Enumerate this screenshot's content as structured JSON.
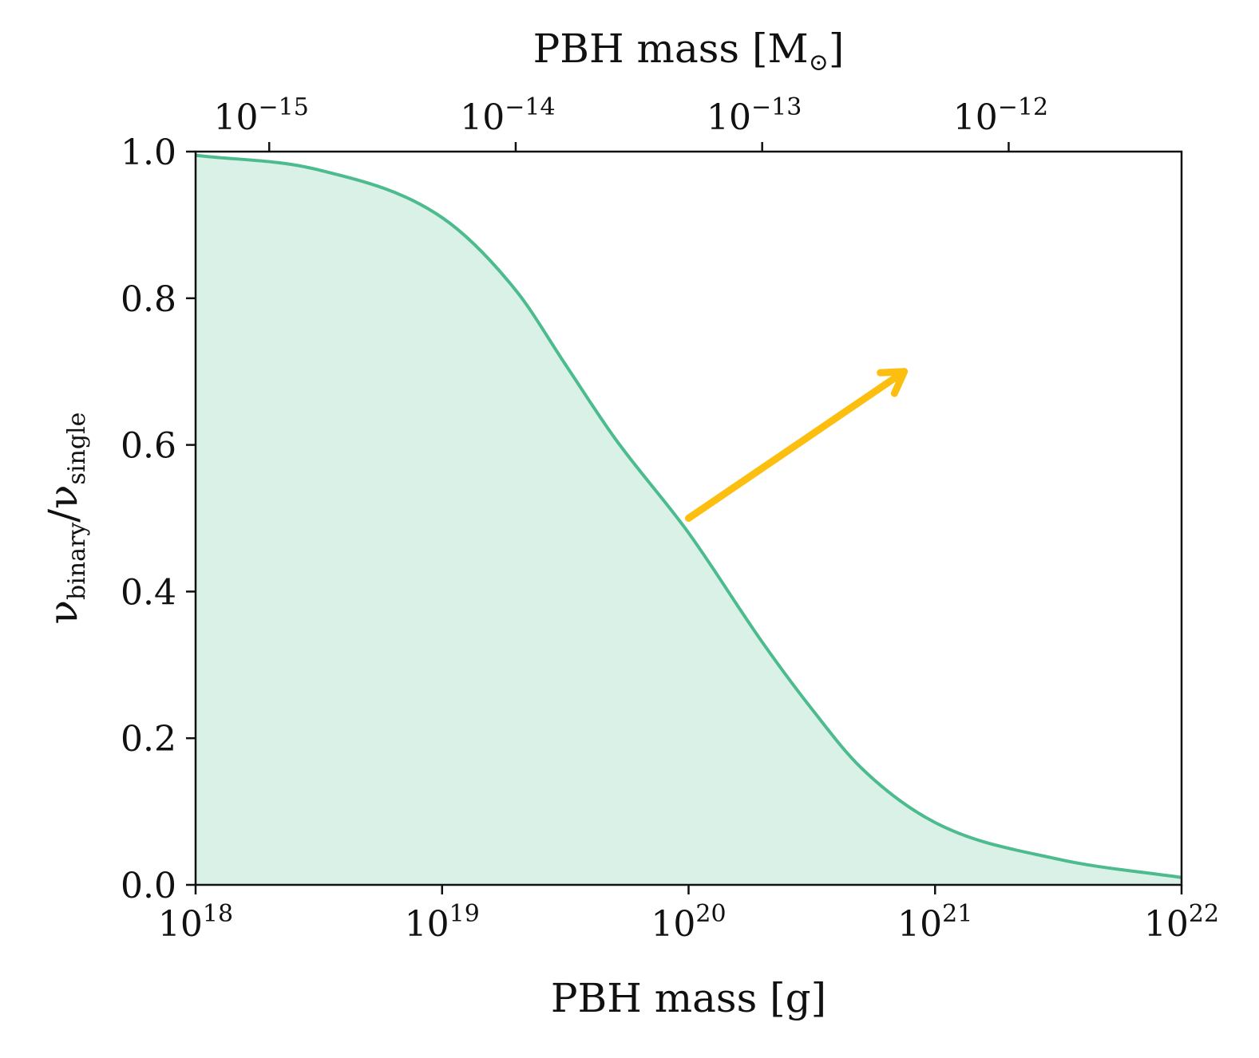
{
  "chart_data": {
    "type": "area",
    "xlabel": "PBH mass [g]",
    "ylabel": {
      "main": "ν",
      "sub1": "binary",
      "sep": "/",
      "main2": "ν",
      "sub2": "single"
    },
    "top_xlabel": {
      "prefix": "PBH mass [M",
      "sun": "⊙",
      "suffix": "]"
    },
    "x_scale": "log",
    "xlim": [
      1e+18,
      1e+22
    ],
    "ylim": [
      0.0,
      1.0
    ],
    "grid": false,
    "x_ticks": [
      {
        "value": 1e+18,
        "base": "10",
        "exp": "18"
      },
      {
        "value": 1e+19,
        "base": "10",
        "exp": "19"
      },
      {
        "value": 1e+20,
        "base": "10",
        "exp": "20"
      },
      {
        "value": 1e+21,
        "base": "10",
        "exp": "21"
      },
      {
        "value": 1e+22,
        "base": "10",
        "exp": "22"
      }
    ],
    "top_x_ticks": [
      {
        "value": 1e-15,
        "base": "10",
        "exp": "−15"
      },
      {
        "value": 1e-14,
        "base": "10",
        "exp": "−14"
      },
      {
        "value": 1e-13,
        "base": "10",
        "exp": "−13"
      },
      {
        "value": 1e-12,
        "base": "10",
        "exp": "−12"
      }
    ],
    "y_ticks": [
      "0.0",
      "0.2",
      "0.4",
      "0.6",
      "0.8",
      "1.0"
    ],
    "series": [
      {
        "x": [
          1e+18,
          3.16e+18,
          1e+19,
          2e+19,
          3.16e+19,
          5e+19,
          1e+20,
          2e+20,
          3.16e+20,
          5e+20,
          1e+21,
          3.16e+21,
          1e+22
        ],
        "y": [
          0.995,
          0.975,
          0.91,
          0.81,
          0.71,
          0.61,
          0.48,
          0.33,
          0.24,
          0.16,
          0.085,
          0.035,
          0.01
        ]
      }
    ],
    "annotation_arrow": {
      "from": [
        1e+20,
        0.5
      ],
      "to": [
        7.5e+20,
        0.7
      ]
    },
    "colors": {
      "line": "#4cbb8e",
      "fill": "#d9f1e7",
      "arrow": "#fdbf0f",
      "axis": "#111111"
    }
  }
}
